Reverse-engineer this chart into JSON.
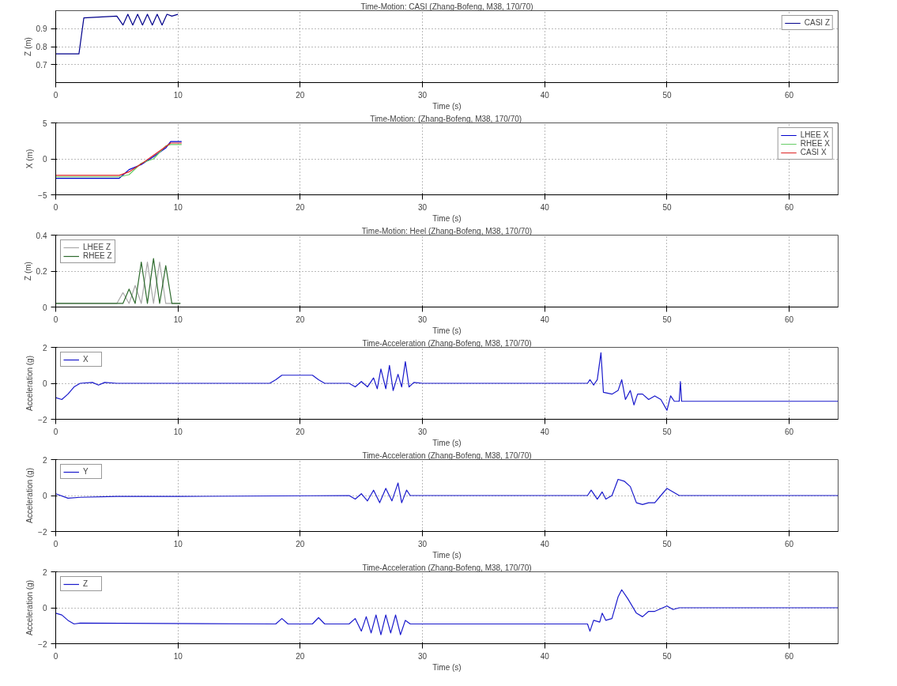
{
  "chart_data": [
    {
      "type": "line",
      "title": "Time-Motion: CASI (Zhang-Bofeng, M38, 170/70)",
      "xlabel": "Time (s)",
      "ylabel": "Z (m)",
      "xlim": [
        0,
        64
      ],
      "xticks": [
        0,
        10,
        20,
        30,
        40,
        50,
        60
      ],
      "ylim": [
        0.6,
        1.0
      ],
      "yticks": [
        0.7,
        0.8,
        0.9
      ],
      "grid": true,
      "legend": "top right",
      "series": [
        {
          "name": "CASI Z",
          "color": "#00008b",
          "x": [
            0,
            1.9,
            2.3,
            5,
            5.5,
            5.9,
            6.3,
            6.7,
            7.1,
            7.5,
            7.9,
            8.3,
            8.7,
            9.1,
            9.5,
            10
          ],
          "values": [
            0.76,
            0.76,
            0.96,
            0.97,
            0.92,
            0.98,
            0.92,
            0.98,
            0.92,
            0.98,
            0.92,
            0.98,
            0.92,
            0.98,
            0.97,
            0.98
          ]
        }
      ]
    },
    {
      "type": "line",
      "title": "Time-Motion:  (Zhang-Bofeng, M38, 170/70)",
      "xlabel": "Time (s)",
      "ylabel": "X (m)",
      "xlim": [
        0,
        64
      ],
      "xticks": [
        0,
        10,
        20,
        30,
        40,
        50,
        60
      ],
      "ylim": [
        -5,
        5
      ],
      "yticks": [
        -5,
        0,
        5
      ],
      "grid": true,
      "legend": "top right",
      "series": [
        {
          "name": "LHEE X",
          "color": "#0000cc",
          "x": [
            0,
            5.2,
            6,
            7,
            8,
            9,
            9.4,
            10.3
          ],
          "values": [
            -2.7,
            -2.7,
            -1.5,
            -0.8,
            0.3,
            1.5,
            2.4,
            2.4
          ]
        },
        {
          "name": "RHEE X",
          "color": "#66cc66",
          "x": [
            0,
            5.2,
            6,
            7,
            8,
            9,
            9.4,
            10.3
          ],
          "values": [
            -2.5,
            -2.5,
            -2.2,
            -0.6,
            0,
            1.8,
            2.0,
            2.0
          ]
        },
        {
          "name": "CASI X",
          "color": "#dd2222",
          "x": [
            0,
            5.2,
            6,
            7,
            8,
            9,
            9.4,
            10.3
          ],
          "values": [
            -2.3,
            -2.3,
            -1.8,
            -0.7,
            0.5,
            1.7,
            2.2,
            2.2
          ]
        }
      ]
    },
    {
      "type": "line",
      "title": "Time-Motion: Heel (Zhang-Bofeng, M38, 170/70)",
      "xlabel": "Time (s)",
      "ylabel": "Z (m)",
      "xlim": [
        0,
        64
      ],
      "xticks": [
        0,
        10,
        20,
        30,
        40,
        50,
        60
      ],
      "ylim": [
        0,
        0.4
      ],
      "yticks": [
        0,
        0.2,
        0.4
      ],
      "grid": true,
      "legend": "top left",
      "series": [
        {
          "name": "LHEE Z",
          "color": "#a8a8a8",
          "x": [
            0,
            5,
            5.5,
            6,
            6.5,
            7,
            7.5,
            8,
            8.5,
            9,
            10.2
          ],
          "values": [
            0.02,
            0.02,
            0.08,
            0.02,
            0.12,
            0.02,
            0.25,
            0.02,
            0.25,
            0.02,
            0.02
          ]
        },
        {
          "name": "RHEE Z",
          "color": "#2e6b2e",
          "x": [
            0,
            5.5,
            6,
            6.5,
            7,
            7.5,
            8,
            8.5,
            9,
            9.5,
            10.2
          ],
          "values": [
            0.02,
            0.02,
            0.1,
            0.02,
            0.25,
            0.02,
            0.27,
            0.02,
            0.23,
            0.02,
            0.02
          ]
        }
      ]
    },
    {
      "type": "line",
      "title": "Time-Acceleration (Zhang-Bofeng, M38, 170/70)",
      "xlabel": "Time (s)",
      "ylabel": "Acceleration (g)",
      "xlim": [
        0,
        64
      ],
      "xticks": [
        0,
        10,
        20,
        30,
        40,
        50,
        60
      ],
      "ylim": [
        -2,
        2
      ],
      "yticks": [
        -2,
        0,
        2
      ],
      "grid": true,
      "legend": "top left",
      "series": [
        {
          "name": "X",
          "color": "#1a1acc",
          "x": [
            0,
            0.5,
            1,
            1.5,
            2,
            3,
            3.5,
            4,
            5,
            10,
            17.5,
            18,
            18.5,
            21,
            21.5,
            22,
            24,
            24.5,
            25,
            25.5,
            26,
            26.3,
            26.6,
            27,
            27.3,
            27.6,
            28,
            28.3,
            28.6,
            28.9,
            29.3,
            30,
            43.5,
            43.7,
            44,
            44.3,
            44.6,
            44.8,
            45.5,
            46,
            46.3,
            46.6,
            47,
            47.3,
            47.6,
            48,
            48.5,
            49,
            49.5,
            50,
            50.3,
            50.6,
            51,
            51.1,
            51.2,
            64
          ],
          "values": [
            -0.8,
            -0.9,
            -0.6,
            -0.2,
            0,
            0.05,
            -0.1,
            0.05,
            0,
            0,
            0,
            0.2,
            0.45,
            0.45,
            0.2,
            0,
            0,
            -0.2,
            0.1,
            -0.2,
            0.3,
            -0.3,
            0.8,
            -0.3,
            1.0,
            -0.4,
            0.5,
            -0.2,
            1.2,
            -0.2,
            0.05,
            0,
            0,
            0.2,
            -0.1,
            0.2,
            1.7,
            -0.5,
            -0.6,
            -0.4,
            0.2,
            -0.9,
            -0.4,
            -1.2,
            -0.6,
            -0.6,
            -0.9,
            -0.7,
            -0.9,
            -1.5,
            -0.7,
            -1.0,
            -1.0,
            0.1,
            -1.0,
            -1.0
          ]
        }
      ]
    },
    {
      "type": "line",
      "title": "Time-Acceleration (Zhang-Bofeng, M38, 170/70)",
      "xlabel": "Time (s)",
      "ylabel": "Acceleration (g)",
      "xlim": [
        0,
        64
      ],
      "xticks": [
        0,
        10,
        20,
        30,
        40,
        50,
        60
      ],
      "ylim": [
        -2,
        2
      ],
      "yticks": [
        -2,
        0,
        2
      ],
      "grid": true,
      "legend": "top left",
      "series": [
        {
          "name": "Y",
          "color": "#1a1acc",
          "x": [
            0,
            1,
            2,
            5,
            10,
            24,
            24.5,
            25,
            25.5,
            26,
            26.5,
            27,
            27.5,
            28,
            28.3,
            28.7,
            29,
            30,
            43.5,
            43.8,
            44.3,
            44.7,
            45,
            45.5,
            46,
            46.5,
            47,
            47.5,
            48,
            48.5,
            49,
            49.5,
            50,
            50.5,
            51,
            64
          ],
          "values": [
            0.1,
            -0.15,
            -0.1,
            -0.05,
            -0.05,
            0,
            -0.2,
            0.1,
            -0.3,
            0.3,
            -0.4,
            0.4,
            -0.3,
            0.7,
            -0.4,
            0.3,
            0,
            0,
            0,
            0.3,
            -0.2,
            0.2,
            -0.2,
            0,
            0.9,
            0.8,
            0.5,
            -0.4,
            -0.5,
            -0.4,
            -0.4,
            0,
            0.4,
            0.2,
            0,
            0
          ]
        }
      ]
    },
    {
      "type": "line",
      "title": "Time-Acceleration (Zhang-Bofeng, M38, 170/70)",
      "xlabel": "Time (s)",
      "ylabel": "Acceleration (g)",
      "xlim": [
        0,
        64
      ],
      "xticks": [
        0,
        10,
        20,
        30,
        40,
        50,
        60
      ],
      "ylim": [
        -2,
        2
      ],
      "yticks": [
        -2,
        0,
        2
      ],
      "grid": true,
      "legend": "top left",
      "series": [
        {
          "name": "Z",
          "color": "#1a1acc",
          "x": [
            0,
            0.5,
            1,
            1.5,
            2,
            18,
            18.5,
            19,
            21,
            21.5,
            22,
            24,
            24.5,
            25,
            25.4,
            25.8,
            26.2,
            26.6,
            27,
            27.4,
            27.8,
            28.2,
            28.6,
            29,
            43.5,
            43.7,
            44,
            44.5,
            44.7,
            45,
            45.5,
            46,
            46.3,
            46.8,
            47.5,
            48,
            48.5,
            49,
            50,
            50.5,
            51,
            64
          ],
          "values": [
            -0.3,
            -0.4,
            -0.7,
            -0.9,
            -0.85,
            -0.9,
            -0.6,
            -0.9,
            -0.9,
            -0.55,
            -0.9,
            -0.9,
            -0.6,
            -1.3,
            -0.5,
            -1.4,
            -0.4,
            -1.5,
            -0.4,
            -1.4,
            -0.4,
            -1.5,
            -0.7,
            -0.9,
            -0.9,
            -1.3,
            -0.7,
            -0.8,
            -0.3,
            -0.7,
            -0.6,
            0.6,
            1.0,
            0.5,
            -0.3,
            -0.5,
            -0.2,
            -0.2,
            0.1,
            -0.1,
            0,
            0
          ]
        }
      ]
    }
  ]
}
